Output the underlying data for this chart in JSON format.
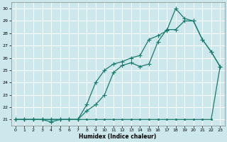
{
  "xlabel": "Humidex (Indice chaleur)",
  "bg_color": "#cce8ec",
  "grid_color": "#ffffff",
  "line_color": "#1a7a6e",
  "xlim": [
    -0.5,
    23.5
  ],
  "ylim": [
    20.5,
    30.5
  ],
  "xticks": [
    0,
    1,
    2,
    3,
    4,
    5,
    6,
    7,
    8,
    9,
    10,
    11,
    12,
    13,
    14,
    15,
    16,
    17,
    18,
    19,
    20,
    21,
    22,
    23
  ],
  "yticks": [
    21,
    22,
    23,
    24,
    25,
    26,
    27,
    28,
    29,
    30
  ],
  "line1_x": [
    0,
    1,
    2,
    3,
    4,
    5,
    6,
    7,
    8,
    9,
    10,
    11,
    12,
    13,
    14,
    15,
    16,
    17,
    18,
    19,
    20,
    21,
    22,
    23
  ],
  "line1_y": [
    21,
    21,
    21,
    21,
    21,
    21,
    21,
    21,
    21,
    21,
    21,
    21,
    21,
    21,
    21,
    21,
    21,
    21,
    21,
    21,
    21,
    21,
    21,
    25.3
  ],
  "line2_x": [
    0,
    1,
    2,
    3,
    4,
    5,
    6,
    7,
    8,
    9,
    10,
    11,
    12,
    13,
    14,
    15,
    16,
    17,
    18,
    19,
    20,
    21,
    22,
    23
  ],
  "line2_y": [
    21,
    21,
    21,
    21,
    20.8,
    21,
    21,
    21,
    21.7,
    22.2,
    23.0,
    24.8,
    25.4,
    25.6,
    25.3,
    25.5,
    27.3,
    28.3,
    28.3,
    29.0,
    29.0,
    27.5,
    26.5,
    25.3
  ],
  "line3_x": [
    0,
    1,
    2,
    3,
    4,
    5,
    6,
    7,
    8,
    9,
    10,
    11,
    12,
    13,
    14,
    15,
    16,
    17,
    18,
    19,
    20,
    21,
    22,
    23
  ],
  "line3_y": [
    21,
    21,
    21,
    21,
    21,
    21,
    21,
    21.0,
    22.2,
    24.0,
    25.0,
    25.5,
    25.7,
    26.0,
    26.2,
    27.5,
    27.8,
    28.2,
    30.0,
    29.2,
    29.0,
    27.5,
    26.5,
    25.3
  ]
}
